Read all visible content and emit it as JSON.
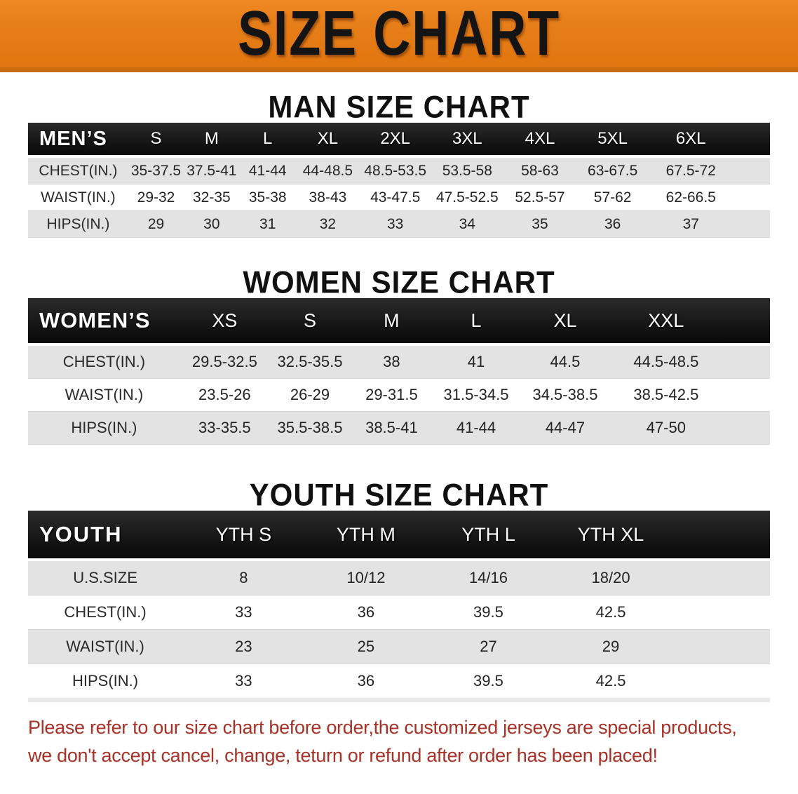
{
  "banner": {
    "title": "SIZE CHART"
  },
  "sections": {
    "man": {
      "title": "MAN SIZE CHART",
      "table": {
        "corner": "MEN’S",
        "sizes": [
          "S",
          "M",
          "L",
          "XL",
          "2XL",
          "3XL",
          "4XL",
          "5XL",
          "6XL"
        ],
        "rows": [
          {
            "label": "CHEST(IN.)",
            "values": [
              "35-37.5",
              "37.5-41",
              "41-44",
              "44-48.5",
              "48.5-53.5",
              "53.5-58",
              "58-63",
              "63-67.5",
              "67.5-72"
            ]
          },
          {
            "label": "WAIST(IN.)",
            "values": [
              "29-32",
              "32-35",
              "35-38",
              "38-43",
              "43-47.5",
              "47.5-52.5",
              "52.5-57",
              "57-62",
              "62-66.5"
            ]
          },
          {
            "label": "HIPS(IN.)",
            "values": [
              "29",
              "30",
              "31",
              "32",
              "33",
              "34",
              "35",
              "36",
              "37"
            ]
          }
        ]
      }
    },
    "women": {
      "title": "WOMEN SIZE CHART",
      "table": {
        "corner": "WOMEN’S",
        "sizes": [
          "XS",
          "S",
          "M",
          "L",
          "XL",
          "XXL"
        ],
        "rows": [
          {
            "label": "CHEST(IN.)",
            "values": [
              "29.5-32.5",
              "32.5-35.5",
              "38",
              "41",
              "44.5",
              "44.5-48.5"
            ]
          },
          {
            "label": "WAIST(IN.)",
            "values": [
              "23.5-26",
              "26-29",
              "29-31.5",
              "31.5-34.5",
              "34.5-38.5",
              "38.5-42.5"
            ]
          },
          {
            "label": "HIPS(IN.)",
            "values": [
              "33-35.5",
              "35.5-38.5",
              "38.5-41",
              "41-44",
              "44-47",
              "47-50"
            ]
          }
        ]
      }
    },
    "youth": {
      "title": "YOUTH SIZE CHART",
      "table": {
        "corner": "YOUTH",
        "sizes": [
          "YTH S",
          "YTH M",
          "YTH L",
          "YTH XL"
        ],
        "rows": [
          {
            "label": "U.S.SIZE",
            "values": [
              "8",
              "10/12",
              "14/16",
              "18/20"
            ]
          },
          {
            "label": "CHEST(IN.)",
            "values": [
              "33",
              "36",
              "39.5",
              "42.5"
            ]
          },
          {
            "label": "WAIST(IN.)",
            "values": [
              "23",
              "25",
              "27",
              "29"
            ]
          },
          {
            "label": "HIPS(IN.)",
            "values": [
              "33",
              "36",
              "39.5",
              "42.5"
            ]
          }
        ]
      }
    }
  },
  "note": {
    "line1": "Please refer to our size chart before order,the customized jerseys are special products,",
    "line2": "we don't accept cancel, change, teturn or refund after order has been placed!"
  },
  "colors": {
    "banner_orange": "#e77f1a",
    "banner_edge": "#c96c12",
    "header_black": "#161616",
    "row_gray": "#e3e3e3",
    "note_red": "#a93126",
    "text_dark": "#242424"
  }
}
